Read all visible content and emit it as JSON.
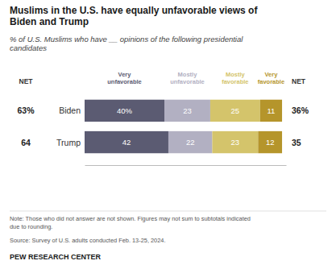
{
  "chart_data": {
    "type": "bar",
    "orientation": "horizontal",
    "stacked": true,
    "data_labels": true,
    "tick_labels": false,
    "grid": false,
    "title": "Muslims in the U.S. have equally unfavorable views of\nBiden and Trump",
    "subtitle": "% of U.S. Muslims who have __ opinions of the following presidential\ncandidates",
    "categories": [
      "Biden",
      "Trump"
    ],
    "series": [
      {
        "name": "Very\nunfavorable",
        "color": "#5b5b72",
        "values": [
          40,
          42
        ],
        "value_labels": [
          "40%",
          "42"
        ]
      },
      {
        "name": "Mostly\nunfavorable",
        "color": "#b2b0c2",
        "values": [
          23,
          22
        ],
        "value_labels": [
          "23",
          "22"
        ]
      },
      {
        "name": "Mostly\nfavorable",
        "color": "#d4c46b",
        "values": [
          25,
          23
        ],
        "value_labels": [
          "25",
          "23"
        ]
      },
      {
        "name": "Very\nfavorable",
        "color": "#b5952b",
        "values": [
          11,
          12
        ],
        "value_labels": [
          "11",
          "12"
        ]
      }
    ],
    "net": [
      {
        "name": "NET",
        "values": [
          63,
          64
        ],
        "value_labels": [
          "63%",
          "64"
        ]
      },
      {
        "name": "NET",
        "values": [
          36,
          35
        ],
        "value_labels": [
          "36%",
          "35"
        ]
      }
    ],
    "xlim": [
      0,
      101
    ],
    "annotations": [
      "Note: Those who did not answer are not shown. Figures may not sum to subtotals indicated\ndue to rounding.",
      "Source: Survey of U.S. adults conducted Feb. 13-25, 2024.",
      "PEW RESEARCH CENTER"
    ]
  }
}
